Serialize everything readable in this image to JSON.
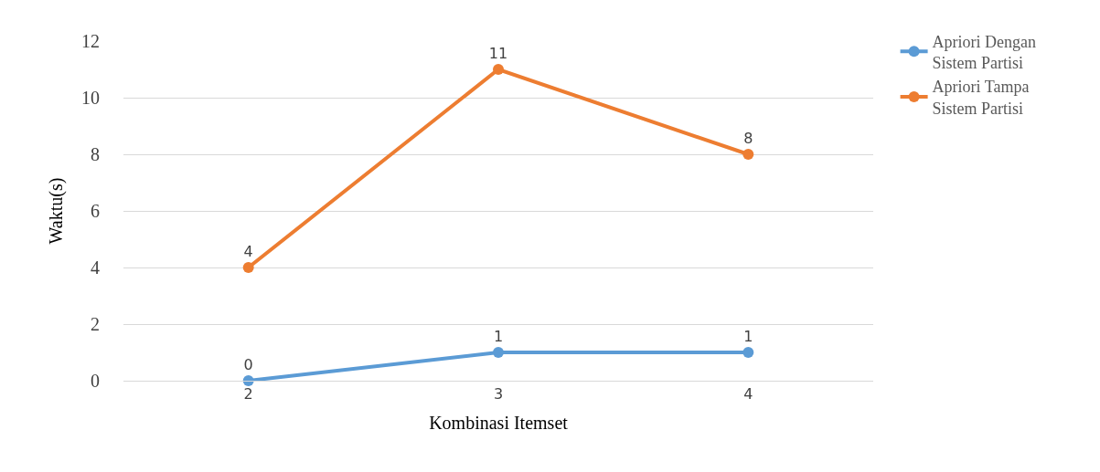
{
  "chart_data": {
    "type": "line",
    "xlabel": "Kombinasi Itemset",
    "ylabel": "Waktu(s)",
    "categories": [
      "2",
      "3",
      "4"
    ],
    "series": [
      {
        "name": "Apriori Dengan Sistem Partisi",
        "color": "#5b9bd5",
        "values": [
          0,
          1,
          1
        ]
      },
      {
        "name": "Apriori Tampa Sistem Partisi",
        "color": "#ed7d31",
        "values": [
          4,
          11,
          8
        ]
      }
    ],
    "ylim": [
      0,
      12
    ],
    "yticks": [
      0,
      2,
      4,
      6,
      8,
      10,
      12
    ],
    "grid": "y",
    "legend": "top right",
    "marker": "circle",
    "line_style": "solid",
    "data_labels": true
  }
}
